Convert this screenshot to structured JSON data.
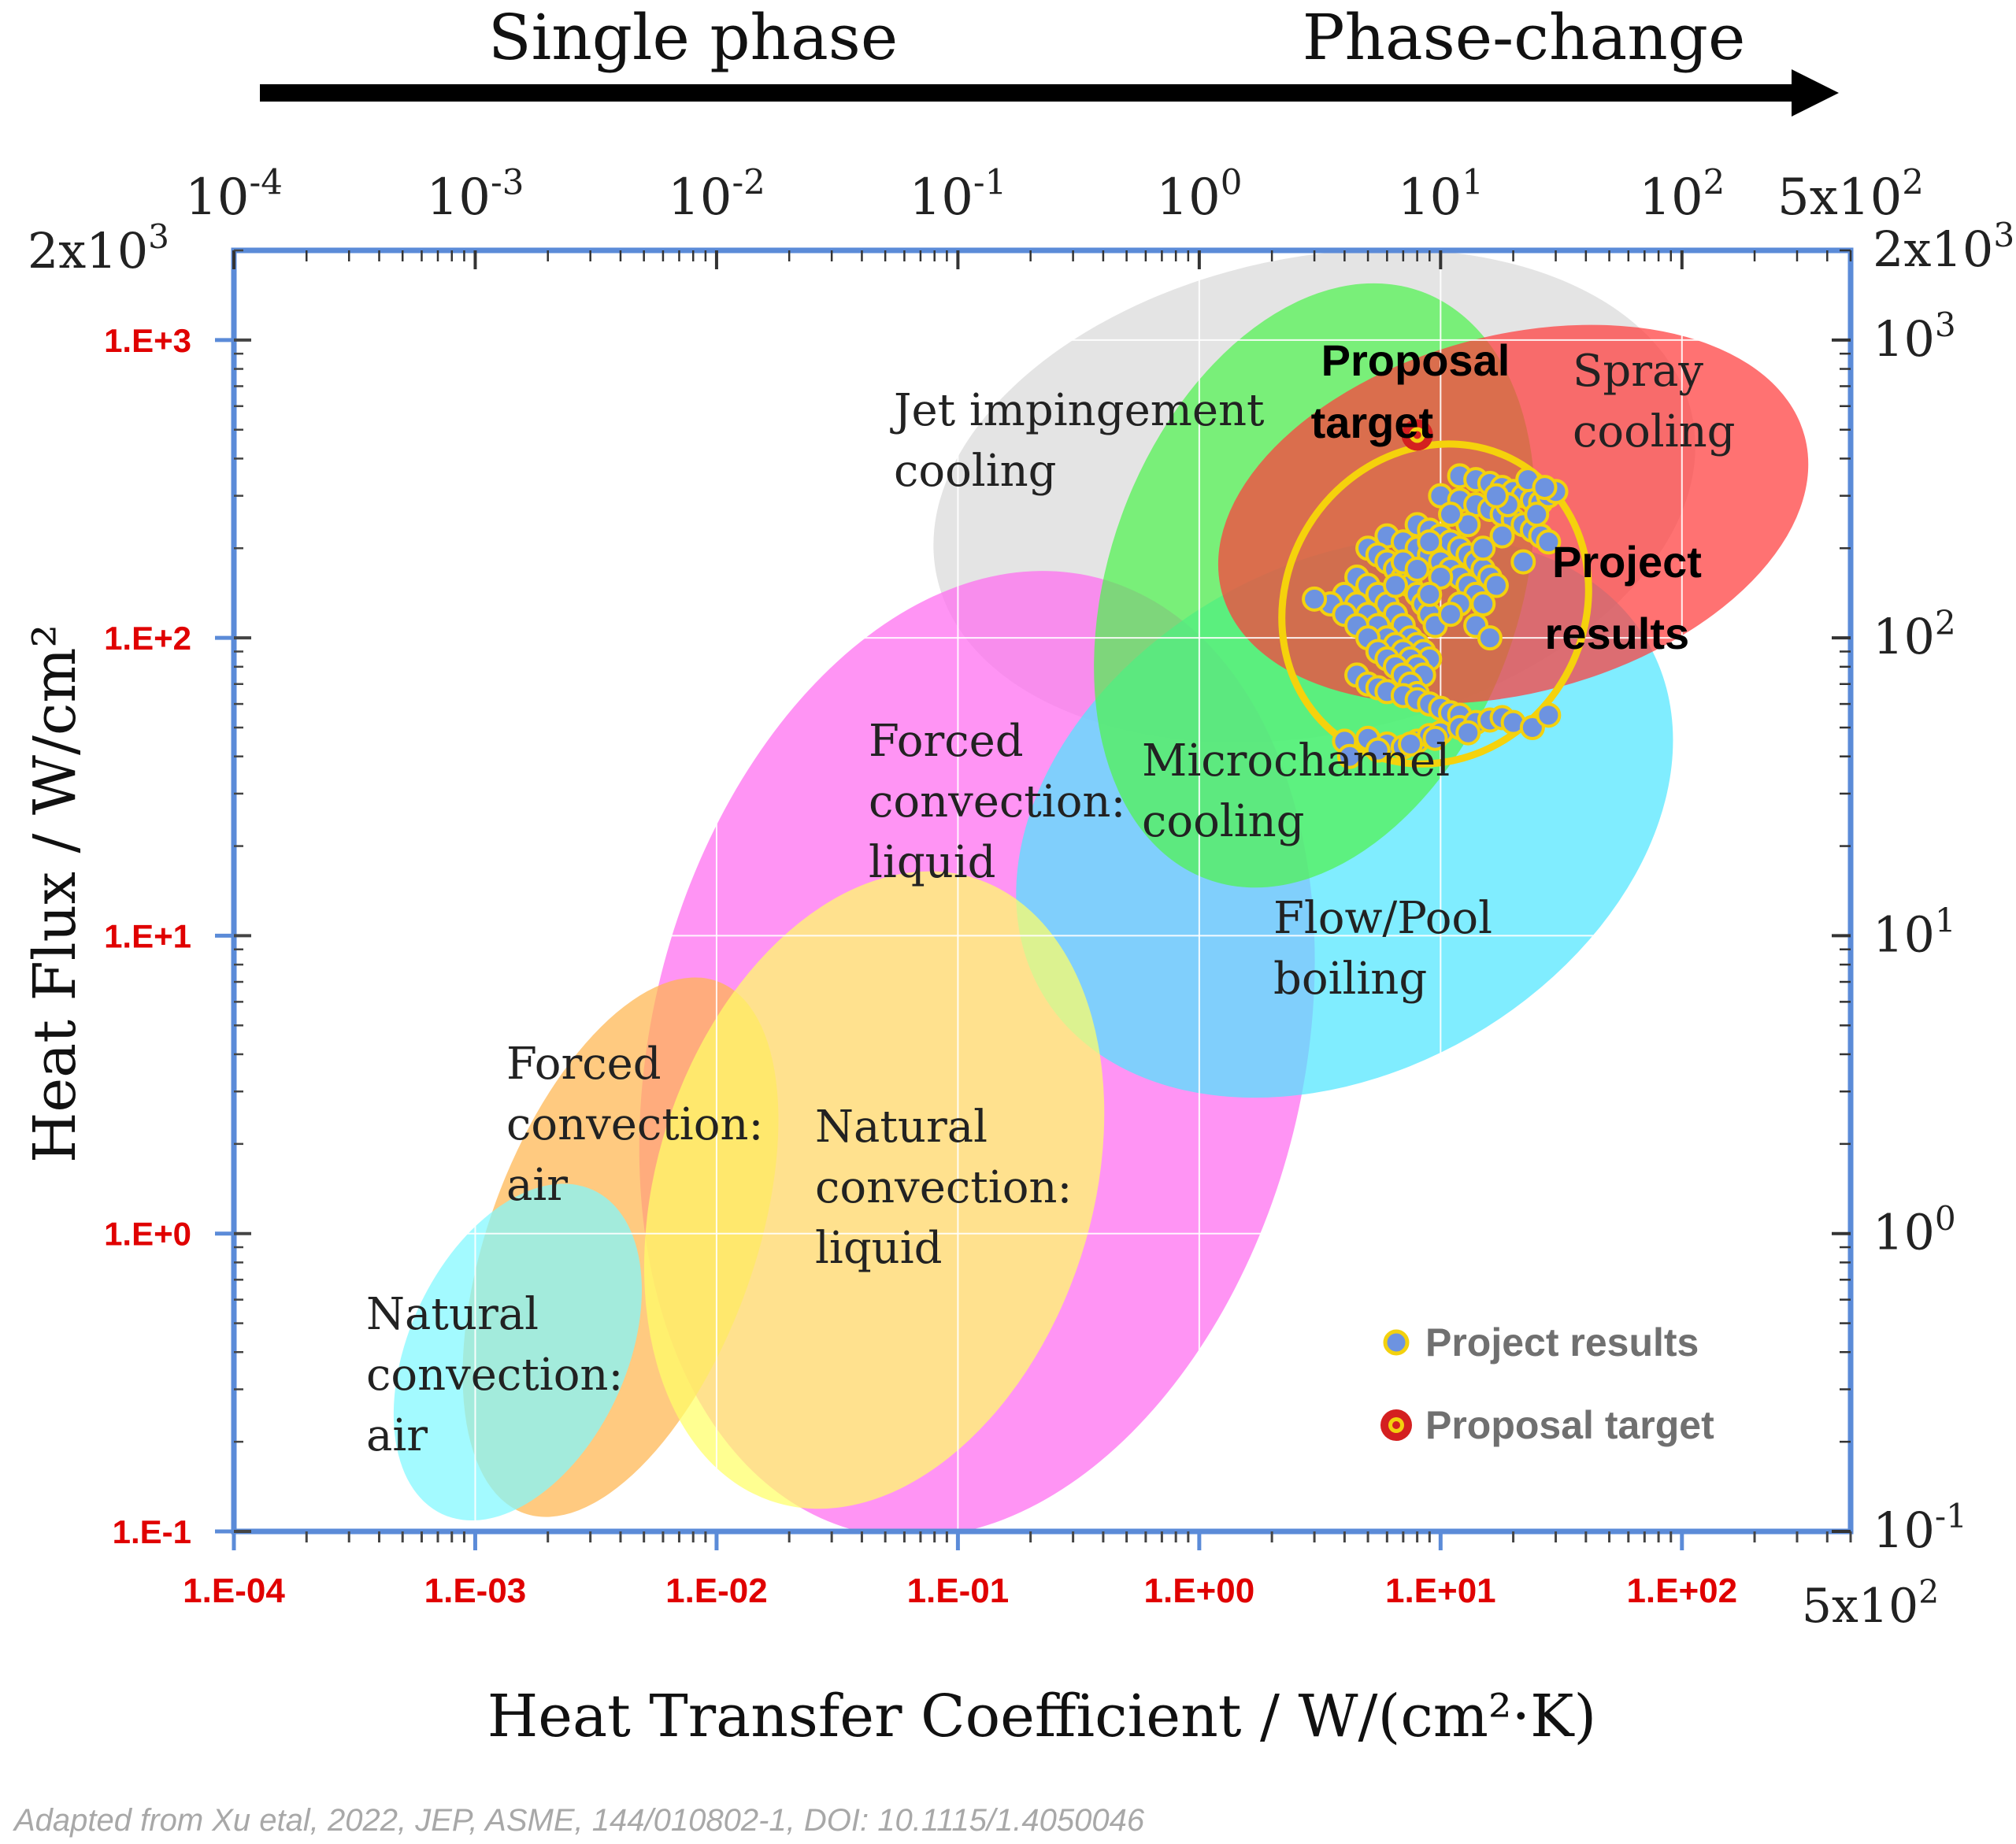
{
  "chart_data": {
    "type": "scatter",
    "banner": {
      "left": "Single phase",
      "right": "Phase-change"
    },
    "xlabel": "Heat Transfer Coefficient / W/(cm²·K)",
    "ylabel": "Heat Flux / W/cm²",
    "xscale": "log",
    "yscale": "log",
    "xlim": [
      0.0001,
      500
    ],
    "ylim": [
      0.1,
      2000
    ],
    "x_ticks_bottom": [
      {
        "value": 0.0001,
        "label": "1.E-04"
      },
      {
        "value": 0.001,
        "label": "1.E-03"
      },
      {
        "value": 0.01,
        "label": "1.E-02"
      },
      {
        "value": 0.1,
        "label": "1.E-01"
      },
      {
        "value": 1,
        "label": "1.E+00"
      },
      {
        "value": 10,
        "label": "1.E+01"
      },
      {
        "value": 100,
        "label": "1.E+02"
      }
    ],
    "x_end_label_bottom": "5x10²",
    "x_ticks_top": [
      {
        "value": 0.0001,
        "base": "10",
        "exp": "-4"
      },
      {
        "value": 0.001,
        "base": "10",
        "exp": "-3"
      },
      {
        "value": 0.01,
        "base": "10",
        "exp": "-2"
      },
      {
        "value": 0.1,
        "base": "10",
        "exp": "-1"
      },
      {
        "value": 1,
        "base": "10",
        "exp": "0"
      },
      {
        "value": 10,
        "base": "10",
        "exp": "1"
      },
      {
        "value": 100,
        "base": "10",
        "exp": "2"
      },
      {
        "value": 500,
        "base": "5x10",
        "exp": "2"
      }
    ],
    "y_ticks_left": [
      {
        "value": 0.1,
        "label": "1.E-1"
      },
      {
        "value": 1,
        "label": "1.E+0"
      },
      {
        "value": 10,
        "label": "1.E+1"
      },
      {
        "value": 100,
        "label": "1.E+2"
      },
      {
        "value": 1000,
        "label": "1.E+3"
      }
    ],
    "y_top_label_left": {
      "base": "2x10",
      "exp": "3"
    },
    "y_ticks_right": [
      {
        "value": 0.1,
        "base": "10",
        "exp": "-1"
      },
      {
        "value": 1,
        "base": "10",
        "exp": "0"
      },
      {
        "value": 10,
        "base": "10",
        "exp": "1"
      },
      {
        "value": 100,
        "base": "10",
        "exp": "2"
      },
      {
        "value": 1000,
        "base": "10",
        "exp": "3"
      },
      {
        "value": 2000,
        "base": "2x10",
        "exp": "3"
      }
    ],
    "regions": [
      {
        "name": "Jet impingement cooling",
        "lines": [
          "Jet impingement",
          "cooling"
        ],
        "color": "#d9d9d9",
        "center": [
          3,
          300
        ],
        "rx_dec": 1.6,
        "ry_dec": 0.8,
        "angle": 12
      },
      {
        "name": "Forced convection: liquid",
        "lines": [
          "Forced",
          "convection:",
          "liquid"
        ],
        "color": "#ff6bf0",
        "center": [
          0.12,
          4
        ],
        "rx_dec": 1.35,
        "ry_dec": 1.65,
        "angle": -14
      },
      {
        "name": "Flow/Pool boiling",
        "lines": [
          "Flow/Pool",
          "boiling"
        ],
        "color": "#4fe6ff",
        "center": [
          4,
          25
        ],
        "rx_dec": 1.45,
        "ry_dec": 0.85,
        "angle": 30
      },
      {
        "name": "Microchannel cooling",
        "lines": [
          "Microchannel",
          "cooling"
        ],
        "color": "#4ff34f",
        "center": [
          3,
          150
        ],
        "rx_dec": 0.85,
        "ry_dec": 1.05,
        "angle": -20
      },
      {
        "name": "Spray cooling",
        "lines": [
          "Spray",
          "cooling"
        ],
        "color": "#ff3b3b",
        "center": [
          20,
          260
        ],
        "rx_dec": 1.25,
        "ry_dec": 0.6,
        "angle": 15
      },
      {
        "name": "Forced convection: air",
        "lines": [
          "Forced",
          "convection:",
          "air"
        ],
        "color": "#ffb54f",
        "center": [
          0.004,
          0.9
        ],
        "rx_dec": 0.55,
        "ry_dec": 0.95,
        "angle": -20
      },
      {
        "name": "Natural convection: liquid",
        "lines": [
          "Natural",
          "convection:",
          "liquid"
        ],
        "color": "#ffff66",
        "center": [
          0.045,
          1.4
        ],
        "rx_dec": 0.9,
        "ry_dec": 1.1,
        "angle": -18
      },
      {
        "name": "Natural convection: air",
        "lines": [
          "Natural",
          "convection:",
          "air"
        ],
        "color": "#7ff8ff",
        "center": [
          0.0015,
          0.4
        ],
        "rx_dec": 0.45,
        "ry_dec": 0.6,
        "angle": -25
      }
    ],
    "series": [
      {
        "name": "Project results",
        "marker": "circle",
        "fill": "#6d93e0",
        "edge": "#f3d10e",
        "envelope_color": "#f5d20c",
        "points": [
          [
            12,
            350
          ],
          [
            14,
            340
          ],
          [
            16,
            330
          ],
          [
            18,
            320
          ],
          [
            20,
            310
          ],
          [
            22,
            300
          ],
          [
            24,
            290
          ],
          [
            26,
            285
          ],
          [
            28,
            300
          ],
          [
            30,
            310
          ],
          [
            10,
            300
          ],
          [
            12,
            290
          ],
          [
            14,
            280
          ],
          [
            16,
            270
          ],
          [
            18,
            260
          ],
          [
            20,
            250
          ],
          [
            22,
            240
          ],
          [
            24,
            230
          ],
          [
            26,
            220
          ],
          [
            28,
            210
          ],
          [
            8,
            240
          ],
          [
            9,
            230
          ],
          [
            10,
            220
          ],
          [
            11,
            210
          ],
          [
            12,
            200
          ],
          [
            13,
            190
          ],
          [
            14,
            180
          ],
          [
            15,
            170
          ],
          [
            16,
            160
          ],
          [
            17,
            150
          ],
          [
            6,
            220
          ],
          [
            7,
            210
          ],
          [
            8,
            200
          ],
          [
            9,
            190
          ],
          [
            10,
            180
          ],
          [
            11,
            170
          ],
          [
            12,
            160
          ],
          [
            13,
            150
          ],
          [
            14,
            140
          ],
          [
            15,
            130
          ],
          [
            5,
            200
          ],
          [
            5.5,
            190
          ],
          [
            6,
            180
          ],
          [
            6.5,
            170
          ],
          [
            7,
            160
          ],
          [
            7.5,
            150
          ],
          [
            8,
            140
          ],
          [
            8.5,
            130
          ],
          [
            9,
            120
          ],
          [
            9.5,
            110
          ],
          [
            4.5,
            160
          ],
          [
            5,
            150
          ],
          [
            5.5,
            140
          ],
          [
            6,
            130
          ],
          [
            6.5,
            120
          ],
          [
            7,
            110
          ],
          [
            7.5,
            100
          ],
          [
            8,
            95
          ],
          [
            8.5,
            90
          ],
          [
            9,
            85
          ],
          [
            4,
            140
          ],
          [
            4.5,
            130
          ],
          [
            5,
            120
          ],
          [
            5.5,
            110
          ],
          [
            6,
            100
          ],
          [
            6.5,
            95
          ],
          [
            7,
            90
          ],
          [
            7.5,
            85
          ],
          [
            8,
            80
          ],
          [
            8.5,
            75
          ],
          [
            3.5,
            130
          ],
          [
            4,
            120
          ],
          [
            4.5,
            110
          ],
          [
            5,
            100
          ],
          [
            5.5,
            90
          ],
          [
            6,
            85
          ],
          [
            6.5,
            80
          ],
          [
            7,
            75
          ],
          [
            7.5,
            70
          ],
          [
            8,
            65
          ],
          [
            4.5,
            75
          ],
          [
            5,
            70
          ],
          [
            5.5,
            68
          ],
          [
            6,
            66
          ],
          [
            7,
            64
          ],
          [
            8,
            62
          ],
          [
            9,
            60
          ],
          [
            10,
            58
          ],
          [
            11,
            56
          ],
          [
            12,
            55
          ],
          [
            4,
            45
          ],
          [
            5,
            46
          ],
          [
            6,
            44
          ],
          [
            7,
            43
          ],
          [
            8,
            45
          ],
          [
            9,
            47
          ],
          [
            10,
            48
          ],
          [
            12,
            50
          ],
          [
            14,
            52
          ],
          [
            16,
            53
          ],
          [
            18,
            54
          ],
          [
            20,
            52
          ],
          [
            24,
            50
          ],
          [
            28,
            55
          ],
          [
            4.2,
            40
          ],
          [
            5.5,
            42
          ],
          [
            7.5,
            44
          ],
          [
            9.5,
            46
          ],
          [
            13,
            48
          ],
          [
            3,
            135
          ],
          [
            15,
            200
          ],
          [
            18,
            220
          ],
          [
            22,
            180
          ],
          [
            25,
            260
          ],
          [
            13,
            240
          ],
          [
            11,
            260
          ],
          [
            19,
            280
          ],
          [
            23,
            340
          ],
          [
            27,
            320
          ],
          [
            17,
            300
          ],
          [
            9,
            210
          ],
          [
            7,
            180
          ],
          [
            10,
            160
          ],
          [
            12,
            130
          ],
          [
            14,
            110
          ],
          [
            16,
            100
          ],
          [
            11,
            120
          ],
          [
            9,
            140
          ],
          [
            6.5,
            150
          ],
          [
            8,
            170
          ]
        ]
      },
      {
        "name": "Proposal target",
        "marker": "target",
        "fill": "#d42020",
        "edge": "#f3d10e",
        "points": [
          [
            8,
            480
          ]
        ]
      }
    ],
    "annotations": [
      {
        "text": "Proposal",
        "at": [
          3.2,
          760
        ]
      },
      {
        "text": "target",
        "at": [
          2.9,
          470
        ]
      },
      {
        "text": "Project",
        "at": [
          29,
          160
        ]
      },
      {
        "text": "results",
        "at": [
          27,
          92
        ]
      }
    ],
    "legend": {
      "position": "bottom-right",
      "items": [
        {
          "label": "Project results",
          "marker": "circle"
        },
        {
          "label": "Proposal target",
          "marker": "target"
        }
      ]
    },
    "source_note": "Adapted from Xu etal, 2022, JEP, ASME, 144/010802-1, DOI: 10.1115/1.4050046"
  }
}
